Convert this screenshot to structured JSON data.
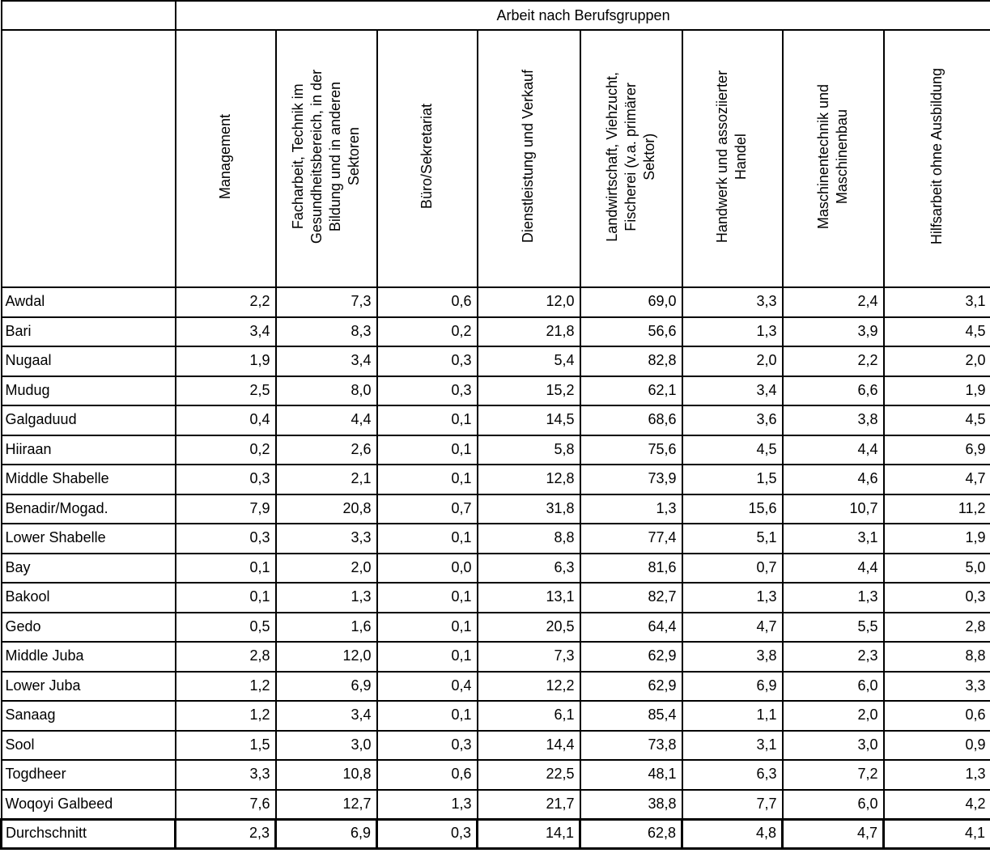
{
  "table": {
    "title": "Arbeit nach Berufsgruppen",
    "columns": [
      "Management",
      "Facharbeit, Technik im\nGesundheitsbereich, in der\nBildung und in anderen\nSektoren",
      "Büro/Sekretariat",
      "Dienstleistung und Verkauf",
      "Landwirtschaft, Viehzucht,\nFischerei (v.a. primärer\nSektor)",
      "Handwerk und assoziierter\nHandel",
      "Maschinentechnik und\nMaschinenbau",
      "Hilfsarbeit ohne Ausbildung"
    ],
    "rows": [
      {
        "region": "Awdal",
        "values": [
          "2,2",
          "7,3",
          "0,6",
          "12,0",
          "69,0",
          "3,3",
          "2,4",
          "3,1"
        ]
      },
      {
        "region": "Bari",
        "values": [
          "3,4",
          "8,3",
          "0,2",
          "21,8",
          "56,6",
          "1,3",
          "3,9",
          "4,5"
        ]
      },
      {
        "region": "Nugaal",
        "values": [
          "1,9",
          "3,4",
          "0,3",
          "5,4",
          "82,8",
          "2,0",
          "2,2",
          "2,0"
        ]
      },
      {
        "region": "Mudug",
        "values": [
          "2,5",
          "8,0",
          "0,3",
          "15,2",
          "62,1",
          "3,4",
          "6,6",
          "1,9"
        ]
      },
      {
        "region": "Galgaduud",
        "values": [
          "0,4",
          "4,4",
          "0,1",
          "14,5",
          "68,6",
          "3,6",
          "3,8",
          "4,5"
        ]
      },
      {
        "region": "Hiiraan",
        "values": [
          "0,2",
          "2,6",
          "0,1",
          "5,8",
          "75,6",
          "4,5",
          "4,4",
          "6,9"
        ]
      },
      {
        "region": "Middle Shabelle",
        "values": [
          "0,3",
          "2,1",
          "0,1",
          "12,8",
          "73,9",
          "1,5",
          "4,6",
          "4,7"
        ]
      },
      {
        "region": "Benadir/Mogad.",
        "values": [
          "7,9",
          "20,8",
          "0,7",
          "31,8",
          "1,3",
          "15,6",
          "10,7",
          "11,2"
        ]
      },
      {
        "region": "Lower Shabelle",
        "values": [
          "0,3",
          "3,3",
          "0,1",
          "8,8",
          "77,4",
          "5,1",
          "3,1",
          "1,9"
        ]
      },
      {
        "region": "Bay",
        "values": [
          "0,1",
          "2,0",
          "0,0",
          "6,3",
          "81,6",
          "0,7",
          "4,4",
          "5,0"
        ]
      },
      {
        "region": "Bakool",
        "values": [
          "0,1",
          "1,3",
          "0,1",
          "13,1",
          "82,7",
          "1,3",
          "1,3",
          "0,3"
        ]
      },
      {
        "region": "Gedo",
        "values": [
          "0,5",
          "1,6",
          "0,1",
          "20,5",
          "64,4",
          "4,7",
          "5,5",
          "2,8"
        ]
      },
      {
        "region": "Middle Juba",
        "values": [
          "2,8",
          "12,0",
          "0,1",
          "7,3",
          "62,9",
          "3,8",
          "2,3",
          "8,8"
        ]
      },
      {
        "region": "Lower Juba",
        "values": [
          "1,2",
          "6,9",
          "0,4",
          "12,2",
          "62,9",
          "6,9",
          "6,0",
          "3,3"
        ]
      },
      {
        "region": "Sanaag",
        "values": [
          "1,2",
          "3,4",
          "0,1",
          "6,1",
          "85,4",
          "1,1",
          "2,0",
          "0,6"
        ]
      },
      {
        "region": "Sool",
        "values": [
          "1,5",
          "3,0",
          "0,3",
          "14,4",
          "73,8",
          "3,1",
          "3,0",
          "0,9"
        ]
      },
      {
        "region": "Togdheer",
        "values": [
          "3,3",
          "10,8",
          "0,6",
          "22,5",
          "48,1",
          "6,3",
          "7,2",
          "1,3"
        ]
      },
      {
        "region": "Woqoyi Galbeed",
        "values": [
          "7,6",
          "12,7",
          "1,3",
          "21,7",
          "38,8",
          "7,7",
          "6,0",
          "4,2"
        ]
      }
    ],
    "summary": {
      "region": "Durchschnitt",
      "values": [
        "2,3",
        "6,9",
        "0,3",
        "14,1",
        "62,8",
        "4,8",
        "4,7",
        "4,1"
      ]
    }
  },
  "chart_data": {
    "type": "table",
    "title": "Arbeit nach Berufsgruppen",
    "categories": [
      "Awdal",
      "Bari",
      "Nugaal",
      "Mudug",
      "Galgaduud",
      "Hiiraan",
      "Middle Shabelle",
      "Benadir/Mogad.",
      "Lower Shabelle",
      "Bay",
      "Bakool",
      "Gedo",
      "Middle Juba",
      "Lower Juba",
      "Sanaag",
      "Sool",
      "Togdheer",
      "Woqoyi Galbeed",
      "Durchschnitt"
    ],
    "series": [
      {
        "name": "Management",
        "values": [
          2.2,
          3.4,
          1.9,
          2.5,
          0.4,
          0.2,
          0.3,
          7.9,
          0.3,
          0.1,
          0.1,
          0.5,
          2.8,
          1.2,
          1.2,
          1.5,
          3.3,
          7.6,
          2.3
        ]
      },
      {
        "name": "Facharbeit, Technik im Gesundheitsbereich, in der Bildung und in anderen Sektoren",
        "values": [
          7.3,
          8.3,
          3.4,
          8.0,
          4.4,
          2.6,
          2.1,
          20.8,
          3.3,
          2.0,
          1.3,
          1.6,
          12.0,
          6.9,
          3.4,
          3.0,
          10.8,
          12.7,
          6.9
        ]
      },
      {
        "name": "Büro/Sekretariat",
        "values": [
          0.6,
          0.2,
          0.3,
          0.3,
          0.1,
          0.1,
          0.1,
          0.7,
          0.1,
          0.0,
          0.1,
          0.1,
          0.1,
          0.4,
          0.1,
          0.3,
          0.6,
          1.3,
          0.3
        ]
      },
      {
        "name": "Dienstleistung und Verkauf",
        "values": [
          12.0,
          21.8,
          5.4,
          15.2,
          14.5,
          5.8,
          12.8,
          31.8,
          8.8,
          6.3,
          13.1,
          20.5,
          7.3,
          12.2,
          6.1,
          14.4,
          22.5,
          21.7,
          14.1
        ]
      },
      {
        "name": "Landwirtschaft, Viehzucht, Fischerei (v.a. primärer Sektor)",
        "values": [
          69.0,
          56.6,
          82.8,
          62.1,
          68.6,
          75.6,
          73.9,
          1.3,
          77.4,
          81.6,
          82.7,
          64.4,
          62.9,
          62.9,
          85.4,
          73.8,
          48.1,
          38.8,
          62.8
        ]
      },
      {
        "name": "Handwerk und assoziierter Handel",
        "values": [
          3.3,
          1.3,
          2.0,
          3.4,
          3.6,
          4.5,
          1.5,
          15.6,
          5.1,
          0.7,
          1.3,
          4.7,
          3.8,
          6.9,
          1.1,
          3.1,
          6.3,
          7.7,
          4.8
        ]
      },
      {
        "name": "Maschinentechnik und Maschinenbau",
        "values": [
          2.4,
          3.9,
          2.2,
          6.6,
          3.8,
          4.4,
          4.6,
          10.7,
          3.1,
          4.4,
          1.3,
          5.5,
          2.3,
          6.0,
          2.0,
          3.0,
          7.2,
          6.0,
          4.7
        ]
      },
      {
        "name": "Hilfsarbeit ohne Ausbildung",
        "values": [
          3.1,
          4.5,
          2.0,
          1.9,
          4.5,
          6.9,
          4.7,
          11.2,
          1.9,
          5.0,
          0.3,
          2.8,
          8.8,
          3.3,
          0.6,
          0.9,
          1.3,
          4.2,
          4.1
        ]
      }
    ],
    "layout": {
      "row_header": "Region (linke Spalte, ohne Titel)",
      "summary_row": "Durchschnitt",
      "values_unit": "Prozent"
    }
  }
}
